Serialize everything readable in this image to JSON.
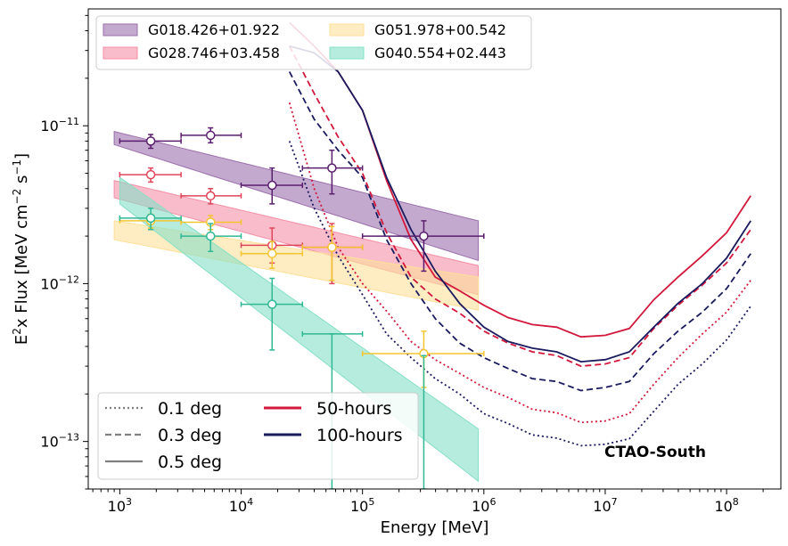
{
  "chart_data": {
    "type": "line",
    "title": "",
    "xlabel": "Energy [MeV]",
    "ylabel": {
      "pre": "E",
      "sup1": "2",
      "mid": "x Flux [MeV cm",
      "sup2": "−2",
      "mid2": " s",
      "sup3": "−1",
      "post": "]"
    },
    "xscale": "log",
    "yscale": "log",
    "xlim": [
      550,
      280000000
    ],
    "ylim": [
      5e-14,
      5.5e-11
    ],
    "x_ticks": [
      {
        "v": 1000,
        "b": "10",
        "e": "3"
      },
      {
        "v": 10000,
        "b": "10",
        "e": "4"
      },
      {
        "v": 100000,
        "b": "10",
        "e": "5"
      },
      {
        "v": 1000000,
        "b": "10",
        "e": "6"
      },
      {
        "v": 10000000,
        "b": "10",
        "e": "7"
      },
      {
        "v": 100000000,
        "b": "10",
        "e": "8"
      }
    ],
    "y_ticks": [
      {
        "v": 1e-13,
        "b": "10",
        "e": "−13"
      },
      {
        "v": 1e-12,
        "b": "10",
        "e": "−12"
      },
      {
        "v": 1e-11,
        "b": "10",
        "e": "−11"
      }
    ],
    "annotation": "CTAO-South",
    "bands": [
      {
        "name": "G018.426+01.922",
        "color": "#9b6fac",
        "x": [
          900,
          900000
        ],
        "lower_start": 7.6e-12,
        "lower_end": 1.4e-12,
        "upper_start": 9.2e-12,
        "upper_end": 2.5e-12
      },
      {
        "name": "G028.746+03.458",
        "color": "#f48fa7",
        "x": [
          900,
          900000
        ],
        "lower_start": 3.5e-12,
        "lower_end": 8.5e-13,
        "upper_start": 4.5e-12,
        "upper_end": 1.3e-12
      },
      {
        "name": "G051.978+00.542",
        "color": "#fde09a",
        "x": [
          900,
          900000
        ],
        "lower_start": 1.9e-12,
        "lower_end": 6.8e-13,
        "upper_start": 2.5e-12,
        "upper_end": 1.1e-12
      },
      {
        "name": "G040.554+02.443",
        "color": "#86e0c6",
        "x": [
          1000,
          900000
        ],
        "lower_start": 3.2e-12,
        "lower_end": 5.6e-14,
        "upper_start": 4.7e-12,
        "upper_end": 1.2e-13
      }
    ],
    "points": [
      {
        "series": "G018.426+01.922",
        "color": "#5a1e6e",
        "items": [
          {
            "x": 1800,
            "xlo": 1000,
            "xhi": 3200,
            "y": 8e-12,
            "ylo": 7.2e-12,
            "yhi": 8.8e-12
          },
          {
            "x": 5600,
            "xlo": 3200,
            "xhi": 10000,
            "y": 8.7e-12,
            "ylo": 7.8e-12,
            "yhi": 9.7e-12
          },
          {
            "x": 18000,
            "xlo": 10000,
            "xhi": 32000,
            "y": 4.2e-12,
            "ylo": 3.2e-12,
            "yhi": 5.4e-12
          },
          {
            "x": 56000,
            "xlo": 32000,
            "xhi": 100000,
            "y": 5.4e-12,
            "ylo": 3.7e-12,
            "yhi": 7e-12
          },
          {
            "x": 320000,
            "xlo": 100000,
            "xhi": 1000000,
            "y": 2e-12,
            "ylo": 1.2e-12,
            "yhi": 2.5e-12
          }
        ]
      },
      {
        "series": "G028.746+03.458",
        "color": "#e0465a",
        "items": [
          {
            "x": 1800,
            "xlo": 1000,
            "xhi": 3200,
            "y": 4.9e-12,
            "ylo": 4.4e-12,
            "yhi": 5.4e-12
          },
          {
            "x": 5600,
            "xlo": 3200,
            "xhi": 10000,
            "y": 3.6e-12,
            "ylo": 3.2e-12,
            "yhi": 4e-12
          },
          {
            "x": 18000,
            "xlo": 10000,
            "xhi": 32000,
            "y": 1.75e-12,
            "ylo": 1.35e-12,
            "yhi": 2.25e-12
          },
          {
            "x": 56000,
            "xlo": 32000,
            "xhi": 100000,
            "y": 1.7e-12,
            "ylo": 1e-12,
            "yhi": 2.4e-12
          }
        ]
      },
      {
        "series": "G051.978+00.542",
        "color": "#f5c530",
        "items": [
          {
            "x": 1800,
            "xlo": 1000,
            "xhi": 3200,
            "y": 2.5e-12,
            "ylo": 2.25e-12,
            "yhi": 2.75e-12
          },
          {
            "x": 5600,
            "xlo": 3200,
            "xhi": 10000,
            "y": 2.45e-12,
            "ylo": 2.2e-12,
            "yhi": 2.7e-12
          },
          {
            "x": 18000,
            "xlo": 10000,
            "xhi": 32000,
            "y": 1.55e-12,
            "ylo": 1.25e-12,
            "yhi": 1.85e-12
          },
          {
            "x": 56000,
            "xlo": 32000,
            "xhi": 100000,
            "y": 1.7e-12,
            "ylo": 1.05e-12,
            "yhi": 2.3e-12
          },
          {
            "x": 320000,
            "xlo": 100000,
            "xhi": 1000000,
            "y": 3.6e-13,
            "ylo": 2.2e-13,
            "yhi": 5e-13
          }
        ]
      },
      {
        "series": "G040.554+02.443",
        "color": "#2fb893",
        "items": [
          {
            "x": 1800,
            "xlo": 1000,
            "xhi": 3200,
            "y": 2.6e-12,
            "ylo": 2.2e-12,
            "yhi": 3e-12
          },
          {
            "x": 5600,
            "xlo": 3200,
            "xhi": 10000,
            "y": 2e-12,
            "ylo": 1.6e-12,
            "yhi": 2.4e-12
          },
          {
            "x": 18000,
            "xlo": 10000,
            "xhi": 32000,
            "y": 7.4e-13,
            "ylo": 3.8e-13,
            "yhi": 1.08e-12
          },
          {
            "x": 56000,
            "xlo": 32000,
            "xhi": 100000,
            "y": null,
            "ylo": 5e-14,
            "yhi": 4.8e-13
          },
          {
            "x": 320000,
            "xlo": 320000,
            "xhi": 320000,
            "y": null,
            "ylo": 5e-14,
            "yhi": 3.5e-13
          }
        ]
      }
    ],
    "sensitivity_x": [
      25000,
      40000,
      63000,
      100000,
      158000,
      251000,
      398000,
      631000,
      1000000,
      1580000,
      2510000,
      3980000,
      6310000,
      10000000,
      15800000,
      25100000,
      39800000,
      63100000,
      100000000,
      158000000
    ],
    "sensitivity": [
      {
        "name": "50h-0.5",
        "color": "#d2183c",
        "dash": "",
        "y": [
          4.5e-11,
          3.2e-11,
          2.2e-11,
          1.25e-11,
          4.5e-12,
          1.9e-12,
          1.1e-12,
          9e-13,
          7.3e-13,
          6.1e-13,
          5.5e-13,
          5.3e-13,
          4.6e-13,
          4.7e-13,
          5.2e-13,
          7.9e-13,
          1.1e-12,
          1.5e-12,
          2.1e-12,
          3.6e-12
        ]
      },
      {
        "name": "50h-0.3",
        "color": "#d2183c",
        "dash": "7,4",
        "y": [
          3.2e-11,
          1.6e-11,
          8.5e-12,
          5e-12,
          2.1e-12,
          1.1e-12,
          8e-13,
          6.5e-13,
          5e-13,
          4.2e-13,
          3.7e-13,
          3.5e-13,
          3e-13,
          3.1e-13,
          3.4e-13,
          5.2e-13,
          7.3e-13,
          9.8e-13,
          1.35e-12,
          2.2e-12
        ]
      },
      {
        "name": "50h-0.1",
        "color": "#d2183c",
        "dash": "2,3",
        "y": [
          1.4e-11,
          4e-12,
          1.7e-12,
          1e-12,
          6.7e-13,
          4.3e-13,
          3.3e-13,
          2.7e-13,
          2.2e-13,
          1.9e-13,
          1.6e-13,
          1.52e-13,
          1.32e-13,
          1.35e-13,
          1.5e-13,
          2.3e-13,
          3.4e-13,
          4.8e-13,
          6.6e-13,
          1.05e-12
        ]
      },
      {
        "name": "100h-0.5",
        "color": "#1a1a5e",
        "dash": "",
        "y": [
          3.2e-11,
          2.9e-11,
          2.2e-11,
          1.25e-11,
          4.7e-12,
          2.2e-12,
          1.2e-12,
          7.5e-13,
          5.3e-13,
          4.3e-13,
          3.9e-13,
          3.7e-13,
          3.2e-13,
          3.3e-13,
          3.7e-13,
          5.3e-13,
          7.5e-13,
          1e-12,
          1.45e-12,
          2.5e-12
        ]
      },
      {
        "name": "100h-0.3",
        "color": "#1a1a5e",
        "dash": "7,4",
        "y": [
          2.2e-11,
          1.1e-11,
          7e-12,
          4.7e-12,
          1.9e-12,
          1e-12,
          6e-13,
          4.2e-13,
          3.4e-13,
          2.9e-13,
          2.5e-13,
          2.4e-13,
          2.1e-13,
          2.2e-13,
          2.4e-13,
          3.6e-13,
          5e-13,
          6.6e-13,
          9.3e-13,
          1.55e-12
        ]
      },
      {
        "name": "100h-0.1",
        "color": "#1a1a5e",
        "dash": "2,3",
        "y": [
          8e-12,
          3e-12,
          1.5e-12,
          8.5e-13,
          4.8e-13,
          3.4e-13,
          2.5e-13,
          2e-13,
          1.5e-13,
          1.3e-13,
          1.1e-13,
          1.05e-13,
          9.4e-14,
          9.6e-14,
          1.04e-13,
          1.55e-13,
          2.3e-13,
          3.1e-13,
          4.4e-13,
          7.2e-13
        ]
      }
    ],
    "legend_sources": {
      "placement": "top-left",
      "entries": [
        {
          "label": "G018.426+01.922",
          "color": "#9b6fac"
        },
        {
          "label": "G051.978+00.542",
          "color": "#fde09a"
        },
        {
          "label": "G028.746+03.458",
          "color": "#f48fa7"
        },
        {
          "label": "G040.554+02.443",
          "color": "#86e0c6"
        }
      ]
    },
    "legend_lines": {
      "placement": "bottom-left",
      "entries": [
        {
          "label": "0.1 deg",
          "color": "#808080",
          "dash": "2,3"
        },
        {
          "label": "50-hours",
          "color": "#d2183c",
          "dash": ""
        },
        {
          "label": "0.3 deg",
          "color": "#808080",
          "dash": "7,4"
        },
        {
          "label": "100-hours",
          "color": "#1a1a5e",
          "dash": ""
        },
        {
          "label": "0.5 deg",
          "color": "#808080",
          "dash": ""
        }
      ]
    }
  }
}
